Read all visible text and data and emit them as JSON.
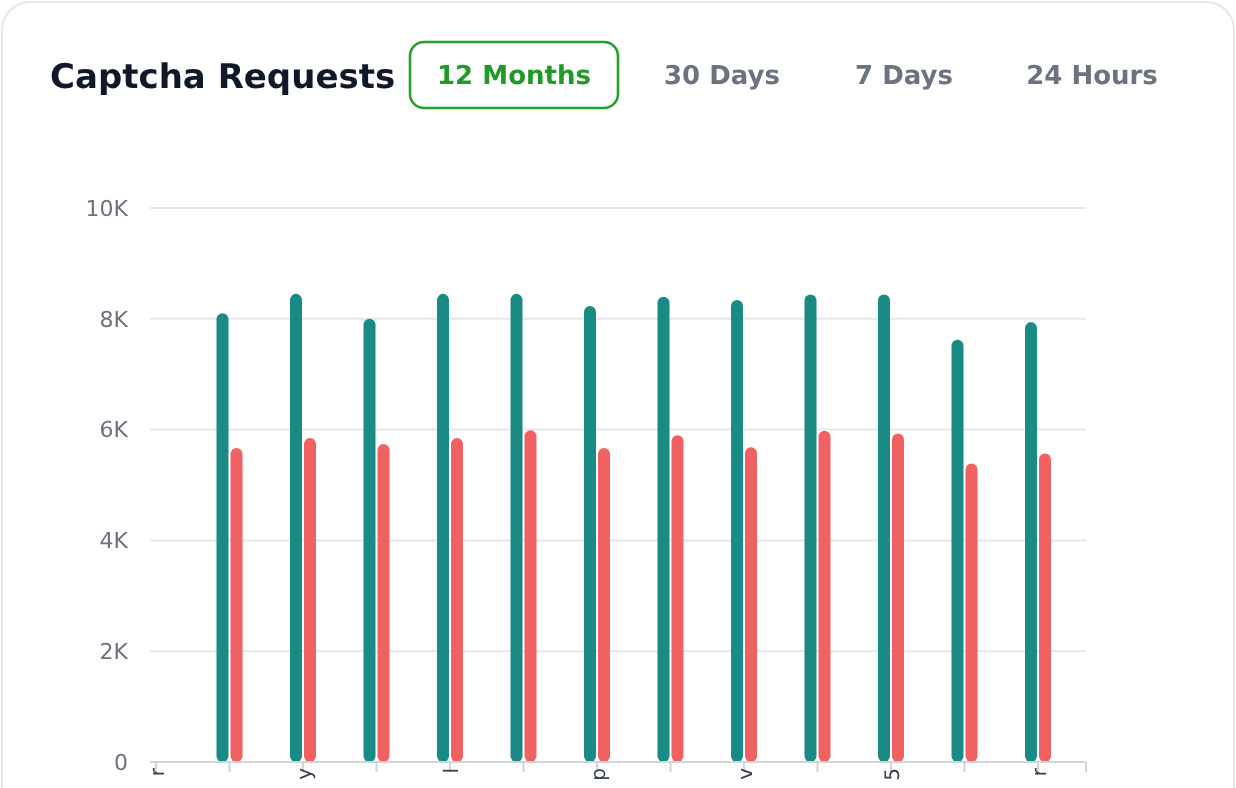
{
  "chart_data": {
    "type": "bar",
    "title": "Captcha Requests",
    "annotations": [
      "12 Months",
      "30 Days",
      "7 Days",
      "24 Hours"
    ],
    "categories": [
      "r",
      null,
      "y",
      null,
      "l",
      null,
      "p",
      null,
      "v",
      null,
      "5",
      null,
      "r"
    ],
    "series": [
      {
        "color": "#1a8a85",
        "values": [
          null,
          8100,
          8450,
          8000,
          8450,
          8450,
          8230,
          8400,
          8340,
          8440,
          8440,
          7620,
          7940
        ]
      },
      {
        "color": "#f06262",
        "values": [
          null,
          5670,
          5850,
          5740,
          5850,
          5990,
          5670,
          5900,
          5680,
          5980,
          5930,
          5390,
          5570
        ]
      }
    ],
    "ylim": [
      0,
      10000
    ],
    "yticks": [
      {
        "value": 0,
        "label": "0"
      },
      {
        "value": 2000,
        "label": "2K"
      },
      {
        "value": 4000,
        "label": "4K"
      },
      {
        "value": 6000,
        "label": "6K"
      },
      {
        "value": 8000,
        "label": "8K"
      },
      {
        "value": 10000,
        "label": "10K"
      }
    ],
    "grid": "y"
  }
}
